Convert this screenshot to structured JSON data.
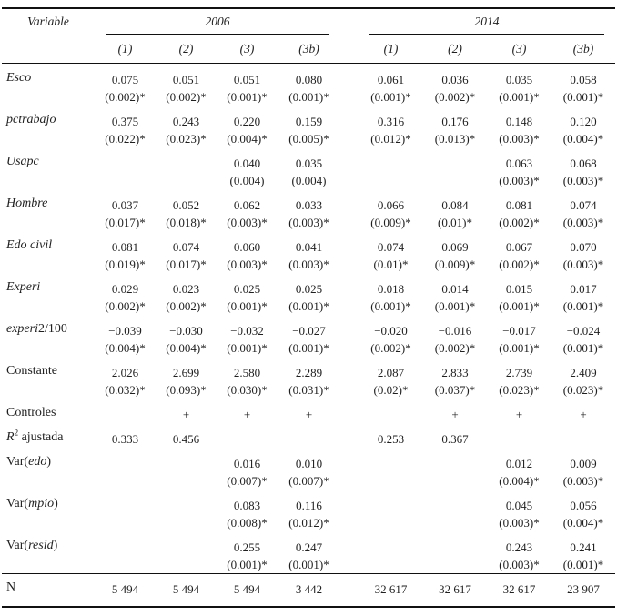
{
  "table": {
    "header": {
      "variable_label": "Variable",
      "groups": [
        {
          "label": "2006"
        },
        {
          "label": "2014"
        }
      ],
      "subcols": [
        "(1)",
        "(2)",
        "(3)",
        "(3b)"
      ]
    },
    "rows": [
      {
        "key": "esco",
        "lines": 2,
        "label": [
          {
            "t": "Esco",
            "s": "i"
          }
        ],
        "cells": [
          {
            "e": "0.075",
            "se": "(0.002)*"
          },
          {
            "e": "0.051",
            "se": "(0.002)*"
          },
          {
            "e": "0.051",
            "se": "(0.001)*"
          },
          {
            "e": "0.080",
            "se": "(0.001)*"
          },
          {
            "e": "0.061",
            "se": "(0.001)*"
          },
          {
            "e": "0.036",
            "se": "(0.002)*"
          },
          {
            "e": "0.035",
            "se": "(0.001)*"
          },
          {
            "e": "0.058",
            "se": "(0.001)*"
          }
        ]
      },
      {
        "key": "pctrabajo",
        "lines": 2,
        "label": [
          {
            "t": "pctrabajo",
            "s": "i"
          }
        ],
        "cells": [
          {
            "e": "0.375",
            "se": "(0.022)*"
          },
          {
            "e": "0.243",
            "se": "(0.023)*"
          },
          {
            "e": "0.220",
            "se": "(0.004)*"
          },
          {
            "e": "0.159",
            "se": "(0.005)*"
          },
          {
            "e": "0.316",
            "se": "(0.012)*"
          },
          {
            "e": "0.176",
            "se": "(0.013)*"
          },
          {
            "e": "0.148",
            "se": "(0.003)*"
          },
          {
            "e": "0.120",
            "se": "(0.004)*"
          }
        ]
      },
      {
        "key": "usapc",
        "lines": 2,
        "label": [
          {
            "t": "Usapc",
            "s": "i"
          }
        ],
        "cells": [
          {
            "e": "",
            "se": ""
          },
          {
            "e": "",
            "se": ""
          },
          {
            "e": "0.040",
            "se": "(0.004)"
          },
          {
            "e": "0.035",
            "se": "(0.004)"
          },
          {
            "e": "",
            "se": ""
          },
          {
            "e": "",
            "se": ""
          },
          {
            "e": "0.063",
            "se": "(0.003)*"
          },
          {
            "e": "0.068",
            "se": "(0.003)*"
          }
        ]
      },
      {
        "key": "hombre",
        "lines": 2,
        "label": [
          {
            "t": "Hombre",
            "s": "i"
          }
        ],
        "cells": [
          {
            "e": "0.037",
            "se": "(0.017)*"
          },
          {
            "e": "0.052",
            "se": "(0.018)*"
          },
          {
            "e": "0.062",
            "se": "(0.003)*"
          },
          {
            "e": "0.033",
            "se": "(0.003)*"
          },
          {
            "e": "0.066",
            "se": "(0.009)*"
          },
          {
            "e": "0.084",
            "se": "(0.01)*"
          },
          {
            "e": "0.081",
            "se": "(0.002)*"
          },
          {
            "e": "0.074",
            "se": "(0.003)*"
          }
        ]
      },
      {
        "key": "edo-civil",
        "lines": 2,
        "label": [
          {
            "t": "Edo civil",
            "s": "i"
          }
        ],
        "cells": [
          {
            "e": "0.081",
            "se": "(0.019)*"
          },
          {
            "e": "0.074",
            "se": "(0.017)*"
          },
          {
            "e": "0.060",
            "se": "(0.003)*"
          },
          {
            "e": "0.041",
            "se": "(0.003)*"
          },
          {
            "e": "0.074",
            "se": "(0.01)*"
          },
          {
            "e": "0.069",
            "se": "(0.009)*"
          },
          {
            "e": "0.067",
            "se": "(0.002)*"
          },
          {
            "e": "0.070",
            "se": "(0.003)*"
          }
        ]
      },
      {
        "key": "experi",
        "lines": 2,
        "label": [
          {
            "t": "Experi",
            "s": "i"
          }
        ],
        "cells": [
          {
            "e": "0.029",
            "se": "(0.002)*"
          },
          {
            "e": "0.023",
            "se": "(0.002)*"
          },
          {
            "e": "0.025",
            "se": "(0.001)*"
          },
          {
            "e": "0.025",
            "se": "(0.001)*"
          },
          {
            "e": "0.018",
            "se": "(0.001)*"
          },
          {
            "e": "0.014",
            "se": "(0.001)*"
          },
          {
            "e": "0.015",
            "se": "(0.001)*"
          },
          {
            "e": "0.017",
            "se": "(0.001)*"
          }
        ]
      },
      {
        "key": "experi2-100",
        "lines": 2,
        "label": [
          {
            "t": "experi",
            "s": "i"
          },
          {
            "t": "2/100",
            "s": "r"
          }
        ],
        "cells": [
          {
            "e": "−0.039",
            "se": "(0.004)*"
          },
          {
            "e": "−0.030",
            "se": "(0.004)*"
          },
          {
            "e": "−0.032",
            "se": "(0.001)*"
          },
          {
            "e": "−0.027",
            "se": "(0.001)*"
          },
          {
            "e": "−0.020",
            "se": "(0.002)*"
          },
          {
            "e": "−0.016",
            "se": "(0.002)*"
          },
          {
            "e": "−0.017",
            "se": "(0.001)*"
          },
          {
            "e": "−0.024",
            "se": "(0.001)*"
          }
        ]
      },
      {
        "key": "constante",
        "lines": 2,
        "label": [
          {
            "t": "Constante",
            "s": "r"
          }
        ],
        "cells": [
          {
            "e": "2.026",
            "se": "(0.032)*"
          },
          {
            "e": "2.699",
            "se": "(0.093)*"
          },
          {
            "e": "2.580",
            "se": "(0.030)*"
          },
          {
            "e": "2.289",
            "se": "(0.031)*"
          },
          {
            "e": "2.087",
            "se": "(0.02)*"
          },
          {
            "e": "2.833",
            "se": "(0.037)*"
          },
          {
            "e": "2.739",
            "se": "(0.023)*"
          },
          {
            "e": "2.409",
            "se": "(0.023)*"
          }
        ]
      },
      {
        "key": "controles",
        "lines": 1,
        "label": [
          {
            "t": "Controles",
            "s": "r"
          }
        ],
        "cells": [
          {
            "e": "",
            "se": ""
          },
          {
            "e": "+",
            "se": ""
          },
          {
            "e": "+",
            "se": ""
          },
          {
            "e": "+",
            "se": ""
          },
          {
            "e": "",
            "se": ""
          },
          {
            "e": "+",
            "se": ""
          },
          {
            "e": "+",
            "se": ""
          },
          {
            "e": "+",
            "se": ""
          }
        ]
      },
      {
        "key": "r2-ajustada",
        "lines": 1,
        "label": [
          {
            "t": "R",
            "s": "i"
          },
          {
            "t": "2",
            "s": "sup"
          },
          {
            "t": " ajustada",
            "s": "r"
          }
        ],
        "cells": [
          {
            "e": "0.333",
            "se": ""
          },
          {
            "e": "0.456",
            "se": ""
          },
          {
            "e": "",
            "se": ""
          },
          {
            "e": "",
            "se": ""
          },
          {
            "e": "0.253",
            "se": ""
          },
          {
            "e": "0.367",
            "se": ""
          },
          {
            "e": "",
            "se": ""
          },
          {
            "e": "",
            "se": ""
          }
        ]
      },
      {
        "key": "var-edo",
        "lines": 2,
        "label": [
          {
            "t": "Var(",
            "s": "r"
          },
          {
            "t": "edo",
            "s": "i"
          },
          {
            "t": ")",
            "s": "r"
          }
        ],
        "cells": [
          {
            "e": "",
            "se": ""
          },
          {
            "e": "",
            "se": ""
          },
          {
            "e": "0.016",
            "se": "(0.007)*"
          },
          {
            "e": "0.010",
            "se": "(0.007)*"
          },
          {
            "e": "",
            "se": ""
          },
          {
            "e": "",
            "se": ""
          },
          {
            "e": "0.012",
            "se": "(0.004)*"
          },
          {
            "e": "0.009",
            "se": "(0.003)*"
          }
        ]
      },
      {
        "key": "var-mpio",
        "lines": 2,
        "label": [
          {
            "t": "Var(",
            "s": "r"
          },
          {
            "t": "mpio",
            "s": "i"
          },
          {
            "t": ")",
            "s": "r"
          }
        ],
        "cells": [
          {
            "e": "",
            "se": ""
          },
          {
            "e": "",
            "se": ""
          },
          {
            "e": "0.083",
            "se": "(0.008)*"
          },
          {
            "e": "0.116",
            "se": "(0.012)*"
          },
          {
            "e": "",
            "se": ""
          },
          {
            "e": "",
            "se": ""
          },
          {
            "e": "0.045",
            "se": "(0.003)*"
          },
          {
            "e": "0.056",
            "se": "(0.004)*"
          }
        ]
      },
      {
        "key": "var-resid",
        "lines": 2,
        "label": [
          {
            "t": "Var(",
            "s": "r"
          },
          {
            "t": "resid",
            "s": "i"
          },
          {
            "t": ")",
            "s": "r"
          }
        ],
        "cells": [
          {
            "e": "",
            "se": ""
          },
          {
            "e": "",
            "se": ""
          },
          {
            "e": "0.255",
            "se": "(0.001)*"
          },
          {
            "e": "0.247",
            "se": "(0.001)*"
          },
          {
            "e": "",
            "se": ""
          },
          {
            "e": "",
            "se": ""
          },
          {
            "e": "0.243",
            "se": "(0.003)*"
          },
          {
            "e": "0.241",
            "se": "(0.001)*"
          }
        ]
      },
      {
        "key": "n",
        "lines": 1,
        "rule_above": true,
        "label": [
          {
            "t": "N",
            "s": "r"
          }
        ],
        "cells": [
          {
            "e": "5 494",
            "se": ""
          },
          {
            "e": "5 494",
            "se": ""
          },
          {
            "e": "5 494",
            "se": ""
          },
          {
            "e": "3 442",
            "se": ""
          },
          {
            "e": "32 617",
            "se": ""
          },
          {
            "e": "32 617",
            "se": ""
          },
          {
            "e": "32 617",
            "se": ""
          },
          {
            "e": "23 907",
            "se": ""
          }
        ]
      }
    ]
  }
}
